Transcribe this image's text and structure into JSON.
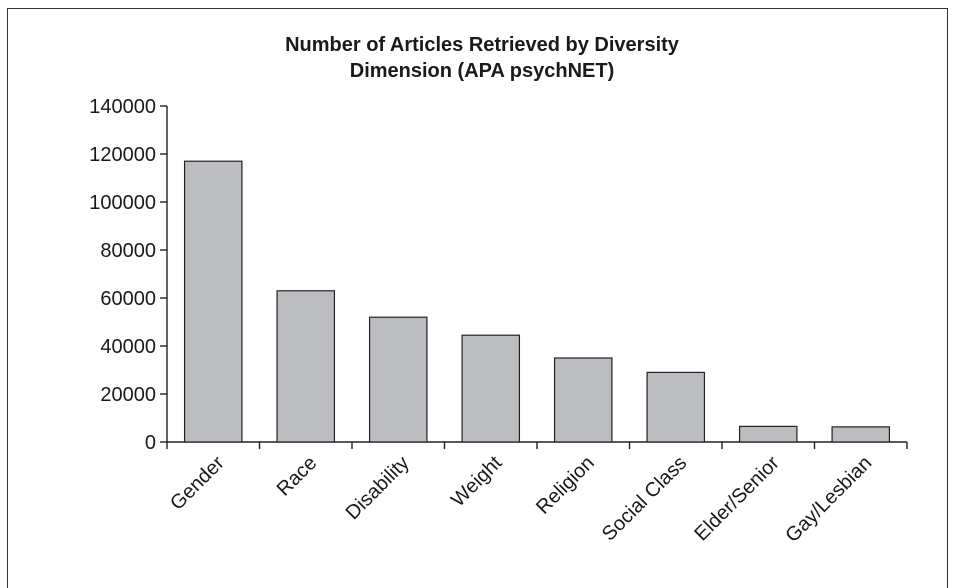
{
  "chart_data": {
    "type": "bar",
    "title_lines": [
      "Number of Articles Retrieved by Diversity",
      "Dimension (APA psychNET)"
    ],
    "xlabel": "",
    "ylabel": "",
    "categories": [
      "Gender",
      "Race",
      "Disability",
      "Weight",
      "Religion",
      "Social Class",
      "Elder/Senior",
      "Gay/Lesbian"
    ],
    "values": [
      117000,
      63000,
      52000,
      44500,
      35000,
      29000,
      6500,
      6300
    ],
    "ylim": [
      0,
      140000
    ],
    "yticks": [
      "0",
      "20000",
      "40000",
      "60000",
      "80000",
      "100000",
      "120000",
      "140000"
    ],
    "bar_color": "#bcbdc0",
    "grid": false,
    "legend": "none"
  }
}
